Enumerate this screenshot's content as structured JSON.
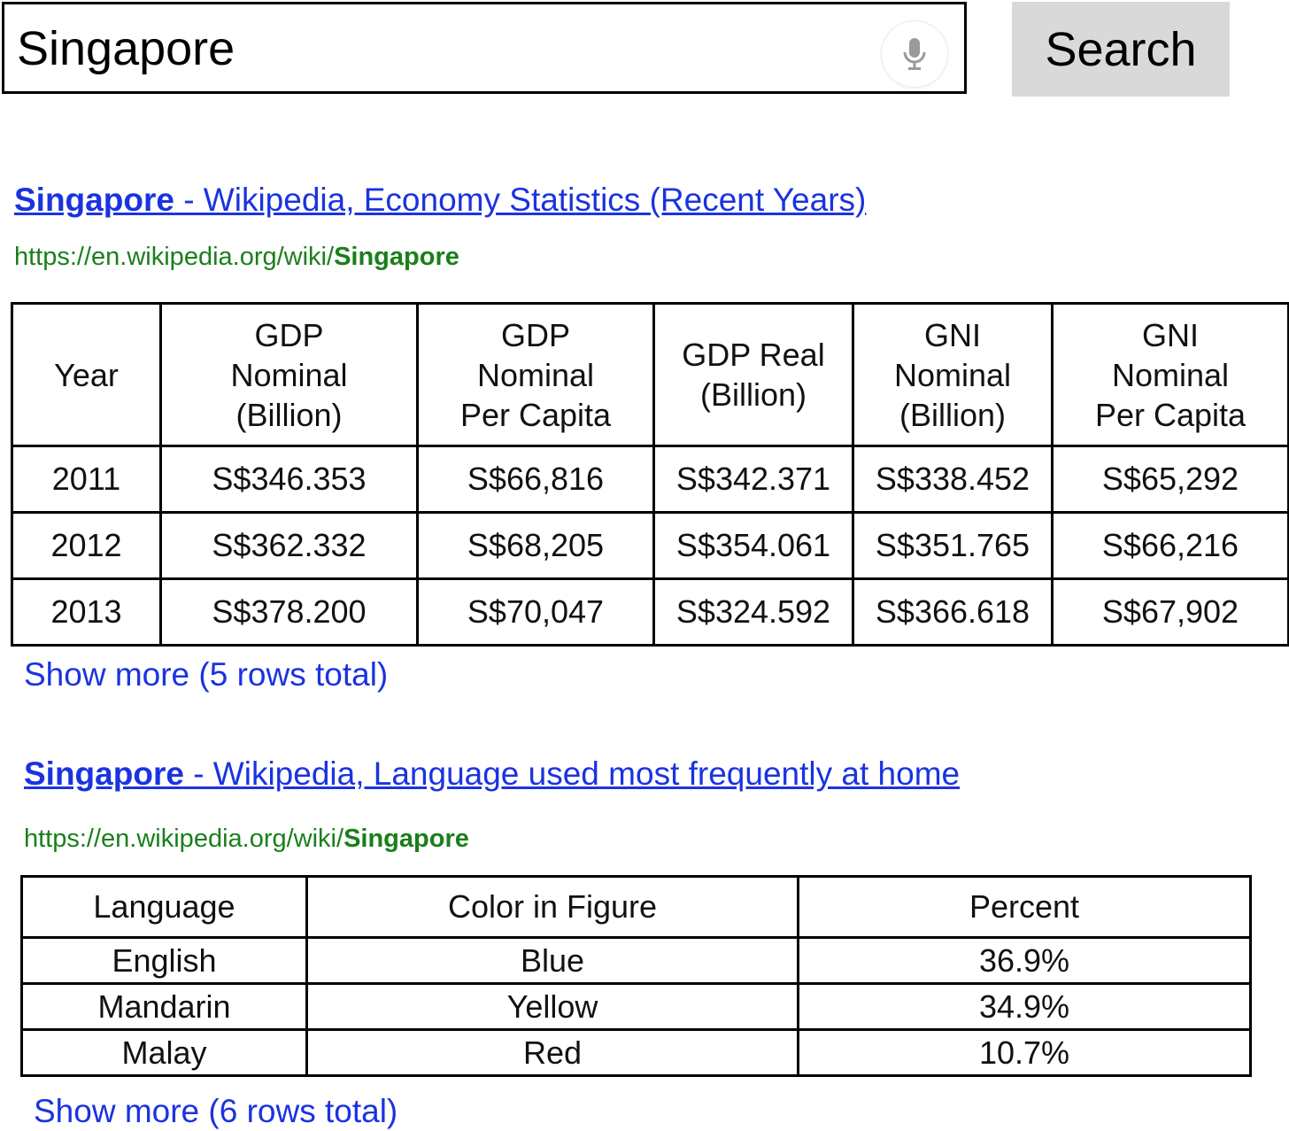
{
  "search": {
    "query": "Singapore",
    "button_label": "Search"
  },
  "results": [
    {
      "title_keyword": "Singapore",
      "title_rest": " - Wikipedia, Economy Statistics (Recent Years)",
      "url_prefix": "https://en.wikipedia.org/wiki/",
      "url_keyword": "Singapore",
      "table": {
        "headers": [
          [
            "Year"
          ],
          [
            "GDP",
            "Nominal",
            "(Billion)"
          ],
          [
            "GDP",
            "Nominal",
            "Per Capita"
          ],
          [
            "GDP Real",
            "(Billion)"
          ],
          [
            "GNI",
            "Nominal",
            "(Billion)"
          ],
          [
            "GNI",
            "Nominal",
            "Per Capita"
          ]
        ],
        "rows": [
          [
            "2011",
            "S$346.353",
            "S$66,816",
            "S$342.371",
            "S$338.452",
            "S$65,292"
          ],
          [
            "2012",
            "S$362.332",
            "S$68,205",
            "S$354.061",
            "S$351.765",
            "S$66,216"
          ],
          [
            "2013",
            "S$378.200",
            "S$70,047",
            "S$324.592",
            "S$366.618",
            "S$67,902"
          ]
        ]
      },
      "show_more": "Show more (5 rows total)"
    },
    {
      "title_keyword": "Singapore",
      "title_rest": " - Wikipedia, Language used most frequently at home",
      "url_prefix": "https://en.wikipedia.org/wiki/",
      "url_keyword": "Singapore",
      "table": {
        "headers": [
          [
            "Language"
          ],
          [
            "Color in Figure"
          ],
          [
            "Percent"
          ]
        ],
        "rows": [
          [
            "English",
            "Blue",
            "36.9%"
          ],
          [
            "Mandarin",
            "Yellow",
            "34.9%"
          ],
          [
            "Malay",
            "Red",
            "10.7%"
          ]
        ]
      },
      "show_more": "Show more (6 rows total)"
    }
  ],
  "colors": {
    "link": "#1a33e0",
    "url": "#1a7f1a",
    "search_button_bg": "#d9d9d9"
  },
  "icons": {
    "mic": "microphone-icon"
  }
}
